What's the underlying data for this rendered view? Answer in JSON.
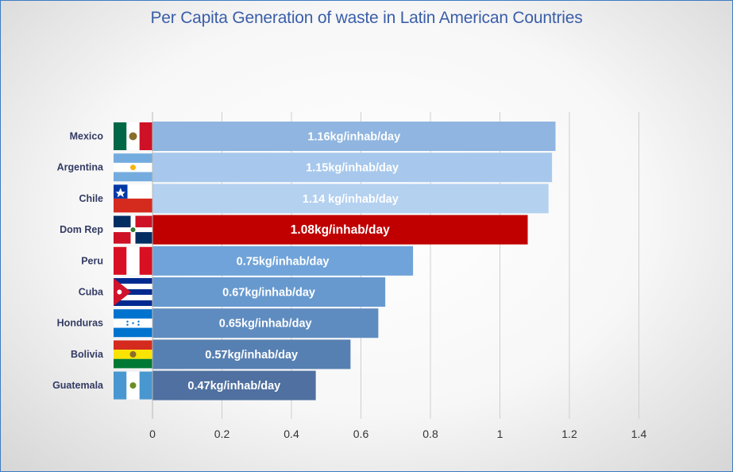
{
  "chart_data": {
    "type": "bar",
    "orientation": "horizontal",
    "title": "Per Capita Generation of waste  in Latin American Countries",
    "categories": [
      "Mexico",
      "Argentina",
      "Chile",
      "Dom Rep",
      "Peru",
      "Cuba",
      "Honduras",
      "Bolivia",
      "Guatemala"
    ],
    "values": [
      1.16,
      1.15,
      1.14,
      1.08,
      0.75,
      0.67,
      0.65,
      0.57,
      0.47
    ],
    "data_labels": [
      "1.16kg/inhab/day",
      "1.15kg/inhab/day",
      "1.14 kg/inhab/day",
      "1.08kg/inhab/day",
      "0.75kg/inhab/day",
      "0.67kg/inhab/day",
      "0.65kg/inhab/day",
      "0.57kg/inhab/day",
      "0.47kg/inhab/day"
    ],
    "bar_colors": [
      "#8fb5e0",
      "#a7c8ec",
      "#b4d1f0",
      "#c00000",
      "#6fa3d9",
      "#6799cf",
      "#5f8cc0",
      "#5780b2",
      "#4f70a0"
    ],
    "xlim": [
      0,
      1.4
    ],
    "xticks": [
      "0",
      "0.2",
      "0.4",
      "0.6",
      "0.8",
      "1",
      "1.2",
      "1.4"
    ],
    "grid": "vertical",
    "legend": "none",
    "flag_icons": [
      "mexico-flag-icon",
      "argentina-flag-icon",
      "chile-flag-icon",
      "dominican-republic-flag-icon",
      "peru-flag-icon",
      "cuba-flag-icon",
      "honduras-flag-icon",
      "bolivia-flag-icon",
      "guatemala-flag-icon"
    ]
  }
}
